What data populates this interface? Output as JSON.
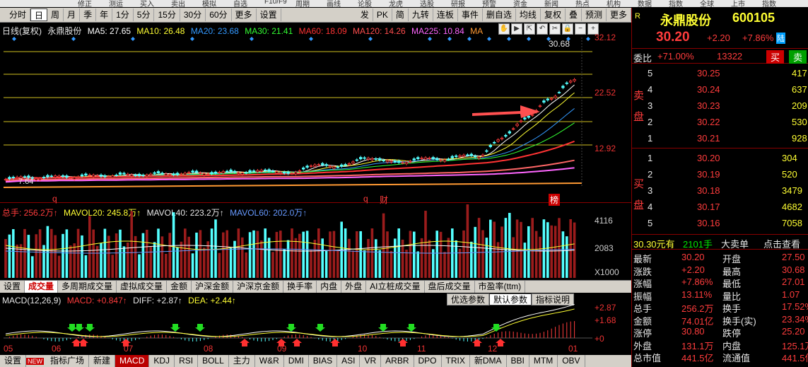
{
  "top_menu": [
    "修正",
    "测运",
    "买入",
    "卖出",
    "模拟",
    "自选",
    "F10/F9",
    "周期",
    "画线",
    "论股",
    "龙虎",
    "选股",
    "研报",
    "预警",
    "资金",
    "新闻",
    "热点",
    "机构",
    "数据",
    "指数",
    "全球",
    "上市",
    "指数"
  ],
  "toolbar": {
    "items": [
      "分时",
      "日",
      "周",
      "月",
      "季",
      "年",
      "1分",
      "5分",
      "15分",
      "30分",
      "60分",
      "更多",
      "设置"
    ],
    "selected": "日",
    "right_items": [
      "发",
      "PK",
      "简",
      "九转",
      "连板",
      "事件",
      "删自选",
      "均线",
      "复权",
      "叠",
      "预测",
      "更多"
    ]
  },
  "legend": {
    "mode": "日线(复权)",
    "name": "永鼎股份",
    "ma5": "MA5: 27.65",
    "ma10": "MA10: 26.48",
    "ma20": "MA20: 23.68",
    "ma30": "MA30: 21.41",
    "ma60": "MA60: 18.09",
    "ma120": "MA120: 14.26",
    "ma225": "MA225: 10.84",
    "ma_more": "MA"
  },
  "price_axis": {
    "ticks": [
      "32.12",
      "22.52",
      "12.92"
    ],
    "max_label": "30.68",
    "min_label": "7.64"
  },
  "markers": {
    "q1": "q",
    "q2": "q",
    "cai": "财",
    "bang": "榜"
  },
  "volume": {
    "legend": {
      "total": "总手: 256.2万↑",
      "mavol20": "MAVOL20: 245.8万↑",
      "mavol40": "MAVOL40: 223.2万↑",
      "mavol60": "MAVOL60: 202.0万↑"
    },
    "ticks": [
      "4116",
      "2083"
    ],
    "unit": "X1000"
  },
  "indicator_tabs": [
    "设置",
    "成交量",
    "多周期成交量",
    "虚拟成交量",
    "金额",
    "沪深金额",
    "沪深京金额",
    "换手率",
    "内盘",
    "外盘",
    "AI立桩成交量",
    "盘后成交量",
    "市盈率(ttm)"
  ],
  "indicator_selected": "成交量",
  "macd": {
    "title": "MACD(12,26,9)",
    "macd": "MACD: +0.847↑",
    "diff": "DIFF: +2.87↑",
    "dea": "DEA: +2.44↑",
    "buttons": [
      "优选参数",
      "默认参数",
      "指标说明"
    ],
    "ticks": [
      "+2.87",
      "+1.68",
      "+0"
    ]
  },
  "x_axis": [
    "05",
    "06",
    "07",
    "08",
    "09",
    "10",
    "11",
    "12",
    "01"
  ],
  "bottom_tabs": [
    "设置",
    "指标广场",
    "新建",
    "MACD",
    "KDJ",
    "RSI",
    "BOLL",
    "主力",
    "W&R",
    "DMI",
    "BIAS",
    "ASI",
    "VR",
    "ARBR",
    "DPO",
    "TRIX",
    "新DMA",
    "BBI",
    "MTM",
    "OBV"
  ],
  "bottom_selected": "MACD",
  "new_badge": "NEW",
  "quote": {
    "flag": "R",
    "name": "永鼎股份",
    "code": "600105",
    "price": "30.20",
    "change": "+2.20",
    "pct": "+7.86%",
    "lu": "陆",
    "wb_label": "委比",
    "wb_val": "+71.00%",
    "wc_val": "13322",
    "buy": "买",
    "sell": "卖",
    "sell_label": [
      "卖",
      "盘"
    ],
    "buy_label": [
      "买",
      "盘"
    ],
    "asks": [
      {
        "n": "5",
        "p": "30.25",
        "v": "417"
      },
      {
        "n": "4",
        "p": "30.24",
        "v": "637"
      },
      {
        "n": "3",
        "p": "30.23",
        "v": "209"
      },
      {
        "n": "2",
        "p": "30.22",
        "v": "530"
      },
      {
        "n": "1",
        "p": "30.21",
        "v": "928"
      }
    ],
    "bids": [
      {
        "n": "1",
        "p": "30.20",
        "v": "304"
      },
      {
        "n": "2",
        "p": "30.19",
        "v": "520"
      },
      {
        "n": "3",
        "p": "30.18",
        "v": "3479"
      },
      {
        "n": "4",
        "p": "30.17",
        "v": "4682"
      },
      {
        "n": "5",
        "p": "30.16",
        "v": "7058"
      }
    ],
    "tick_price": "30.30元有",
    "tick_vol": "2101手",
    "big_order": "大卖单",
    "check": "点击查看",
    "stats": [
      {
        "l1": "最新",
        "v1": "30.20",
        "l2": "开盘",
        "v2": "27.50"
      },
      {
        "l1": "涨跌",
        "v1": "+2.20",
        "l2": "最高",
        "v2": "30.68"
      },
      {
        "l1": "涨幅",
        "v1": "+7.86%",
        "l2": "最低",
        "v2": "27.01"
      },
      {
        "l1": "振幅",
        "v1": "13.11%",
        "l2": "量比",
        "v2": "1.07"
      },
      {
        "l1": "总手",
        "v1": "256.2万",
        "l2": "换手",
        "v2": "17.52%"
      },
      {
        "l1": "金额",
        "v1": "74.01亿",
        "l2": "换手(实)",
        "v2": "23.34%"
      },
      {
        "l1": "涨停",
        "v1": "30.80",
        "l2": "跌停",
        "v2": "25.20"
      },
      {
        "l1": "外盘",
        "v1": "131.1万",
        "l2": "内盘",
        "v2": "125.1万"
      },
      {
        "l1": "总市值",
        "v1": "441.5亿",
        "l2": "流通值",
        "v2": "441.5亿"
      }
    ]
  },
  "colors": {
    "up": "#ff3c3c",
    "down": "#54ffff",
    "bg": "#000000"
  }
}
